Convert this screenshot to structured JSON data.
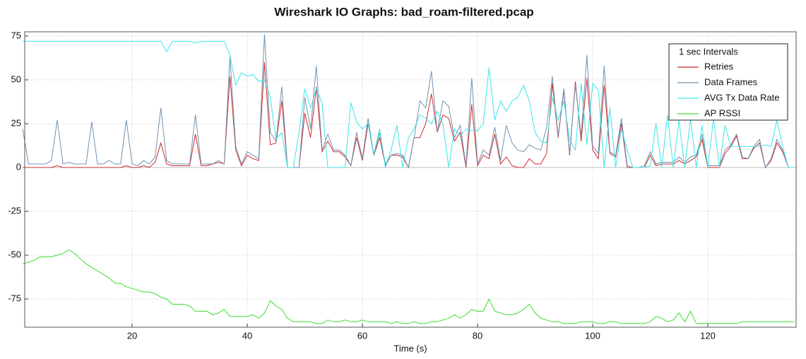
{
  "chart_data": {
    "type": "line",
    "title": "Wireshark IO Graphs: bad_roam-filtered.pcap",
    "x_label": "Time (s)",
    "legend_title": "1 sec Intervals",
    "legend": "upper right",
    "grid": true,
    "xlim": [
      1.35,
      135.34
    ],
    "ylim": [
      -91.1,
      77.4
    ],
    "xticks": [
      20,
      40,
      60,
      80,
      100,
      120
    ],
    "yticks": [
      -75,
      -50,
      -25,
      0,
      25,
      50,
      75
    ],
    "x": [
      1,
      2,
      3,
      4,
      5,
      6,
      7,
      8,
      9,
      10,
      11,
      12,
      13,
      14,
      15,
      16,
      17,
      18,
      19,
      20,
      21,
      22,
      23,
      24,
      25,
      26,
      27,
      28,
      29,
      30,
      31,
      32,
      33,
      34,
      35,
      36,
      37,
      38,
      39,
      40,
      41,
      42,
      43,
      44,
      45,
      46,
      47,
      48,
      49,
      50,
      51,
      52,
      53,
      54,
      55,
      56,
      57,
      58,
      59,
      60,
      61,
      62,
      63,
      64,
      65,
      66,
      67,
      68,
      69,
      70,
      71,
      72,
      73,
      74,
      75,
      76,
      77,
      78,
      79,
      80,
      81,
      82,
      83,
      84,
      85,
      86,
      87,
      88,
      89,
      90,
      91,
      92,
      93,
      94,
      95,
      96,
      97,
      98,
      99,
      100,
      101,
      102,
      103,
      104,
      105,
      106,
      107,
      108,
      109,
      110,
      111,
      112,
      113,
      114,
      115,
      116,
      117,
      118,
      119,
      120,
      121,
      122,
      123,
      124,
      125,
      126,
      127,
      128,
      129,
      130,
      131,
      132,
      133,
      134,
      135
    ],
    "series": [
      {
        "name": "Retries",
        "color": "#cc2a2a",
        "values": [
          0,
          0,
          0,
          0,
          0,
          0,
          1,
          0,
          0,
          0,
          0,
          0,
          0,
          0,
          0,
          0,
          0,
          0,
          1,
          0,
          0,
          1,
          0,
          3,
          14,
          2,
          1,
          1,
          1,
          1,
          19,
          1,
          1,
          2,
          3,
          2,
          52,
          10,
          1,
          7,
          5,
          4,
          60,
          13,
          14,
          38,
          0,
          0,
          0,
          31,
          17,
          46,
          9,
          15,
          9,
          9,
          6,
          1,
          17,
          4,
          25,
          7,
          17,
          1,
          7,
          7,
          6,
          0,
          17,
          17,
          25,
          42,
          20,
          30,
          28,
          15,
          20,
          0,
          36,
          1,
          7,
          5,
          19,
          2,
          6,
          1,
          0,
          0,
          5,
          2,
          2,
          8,
          48,
          17,
          44,
          7,
          49,
          15,
          51,
          10,
          5,
          47,
          8,
          6,
          25,
          0,
          0,
          0,
          0,
          7,
          1,
          2,
          2,
          2,
          4,
          2,
          4,
          6,
          16,
          0,
          0,
          0,
          8,
          12,
          18,
          5,
          5,
          11,
          14,
          0,
          4,
          14,
          9,
          0,
          0
        ]
      },
      {
        "name": "Data Frames",
        "color": "#7191b2",
        "values": [
          22,
          2,
          2,
          2,
          2,
          4,
          27,
          2,
          3,
          2,
          2,
          2,
          26,
          2,
          2,
          4,
          2,
          2,
          27,
          2,
          1,
          4,
          2,
          6,
          34,
          4,
          2,
          2,
          2,
          2,
          30,
          2,
          2,
          2,
          4,
          2,
          63,
          12,
          2,
          9,
          7,
          5,
          76,
          20,
          15,
          46,
          0,
          0,
          0,
          40,
          22,
          58,
          10,
          19,
          10,
          10,
          7,
          1,
          20,
          5,
          28,
          7,
          20,
          2,
          7,
          8,
          7,
          0,
          17,
          38,
          34,
          55,
          20,
          38,
          35,
          17,
          24,
          1,
          51,
          2,
          10,
          7,
          23,
          4,
          24,
          14,
          10,
          9,
          13,
          11,
          10,
          23,
          52,
          18,
          45,
          8,
          47,
          18,
          64,
          12,
          8,
          58,
          9,
          7,
          28,
          1,
          0,
          0,
          1,
          9,
          2,
          3,
          3,
          3,
          6,
          3,
          6,
          7,
          19,
          1,
          1,
          1,
          10,
          13,
          19,
          6,
          5,
          12,
          16,
          0,
          5,
          16,
          10,
          0,
          0
        ]
      },
      {
        "name": "AVG Tx Data Rate",
        "color": "#3ae6ea",
        "values": [
          72,
          72,
          72,
          72,
          72,
          72,
          72,
          72,
          72,
          72,
          72,
          72,
          72,
          72,
          72,
          72,
          72,
          72,
          72,
          72,
          72,
          72,
          72,
          72,
          72,
          66,
          72,
          72,
          72,
          72,
          71,
          72,
          72,
          72,
          72,
          72,
          64,
          47,
          54,
          52,
          53,
          49,
          50,
          40,
          16,
          20,
          0,
          0,
          20,
          45,
          34,
          45,
          37,
          0,
          0,
          0,
          0,
          37,
          26,
          22,
          25,
          8,
          22,
          0,
          10,
          24,
          0,
          17,
          22,
          30,
          28,
          25,
          32,
          25,
          0,
          22,
          18,
          22,
          21,
          21,
          25,
          57,
          27,
          38,
          32,
          38,
          40,
          47,
          38,
          20,
          15,
          14,
          40,
          27,
          38,
          16,
          10,
          48,
          13,
          48,
          44,
          0,
          34,
          0,
          22,
          10,
          0,
          0,
          0,
          1,
          25,
          0,
          30,
          0,
          27,
          0,
          28,
          0,
          24,
          0,
          28,
          0,
          24,
          12,
          12,
          12,
          12,
          12,
          12,
          13,
          12,
          27,
          12,
          0,
          0
        ]
      },
      {
        "name": "AP RSSI",
        "color": "#39dd2c",
        "values": [
          -55,
          -54,
          -53,
          -51,
          -51,
          -51,
          -50,
          -49,
          -47,
          -49,
          -52,
          -55,
          -57,
          -59,
          -61,
          -63,
          -66,
          -66,
          -68,
          -69,
          -70,
          -71,
          -71,
          -72,
          -74,
          -75,
          -78,
          -78,
          -78,
          -79,
          -82,
          -82,
          -82,
          -84,
          -83,
          -81,
          -85,
          -85,
          -85,
          -85,
          -84,
          -86,
          -83,
          -76,
          -79,
          -81,
          -86,
          -88,
          -88,
          -88,
          -88,
          -89,
          -89,
          -87,
          -88,
          -88,
          -87,
          -88,
          -88,
          -87,
          -88,
          -88,
          -88,
          -88,
          -89,
          -88,
          -89,
          -89,
          -88,
          -89,
          -89,
          -88,
          -88,
          -87,
          -86,
          -84,
          -86,
          -84,
          -81,
          -82,
          -82,
          -75,
          -82,
          -83,
          -84,
          -84,
          -83,
          -81,
          -78,
          -83,
          -86,
          -87,
          -88,
          -88,
          -89,
          -89,
          -89,
          -88,
          -88,
          -88,
          -89,
          -89,
          -88,
          -88,
          -89,
          -89,
          -89,
          -89,
          -89,
          -88,
          -85,
          -86,
          -88,
          -87,
          -83,
          -88,
          -82,
          -89,
          -89,
          -89,
          -89,
          -89,
          -89,
          -89,
          -89,
          -88,
          -88,
          -88,
          -88,
          -88,
          -88,
          -88,
          -88,
          -88,
          -88
        ]
      }
    ]
  }
}
